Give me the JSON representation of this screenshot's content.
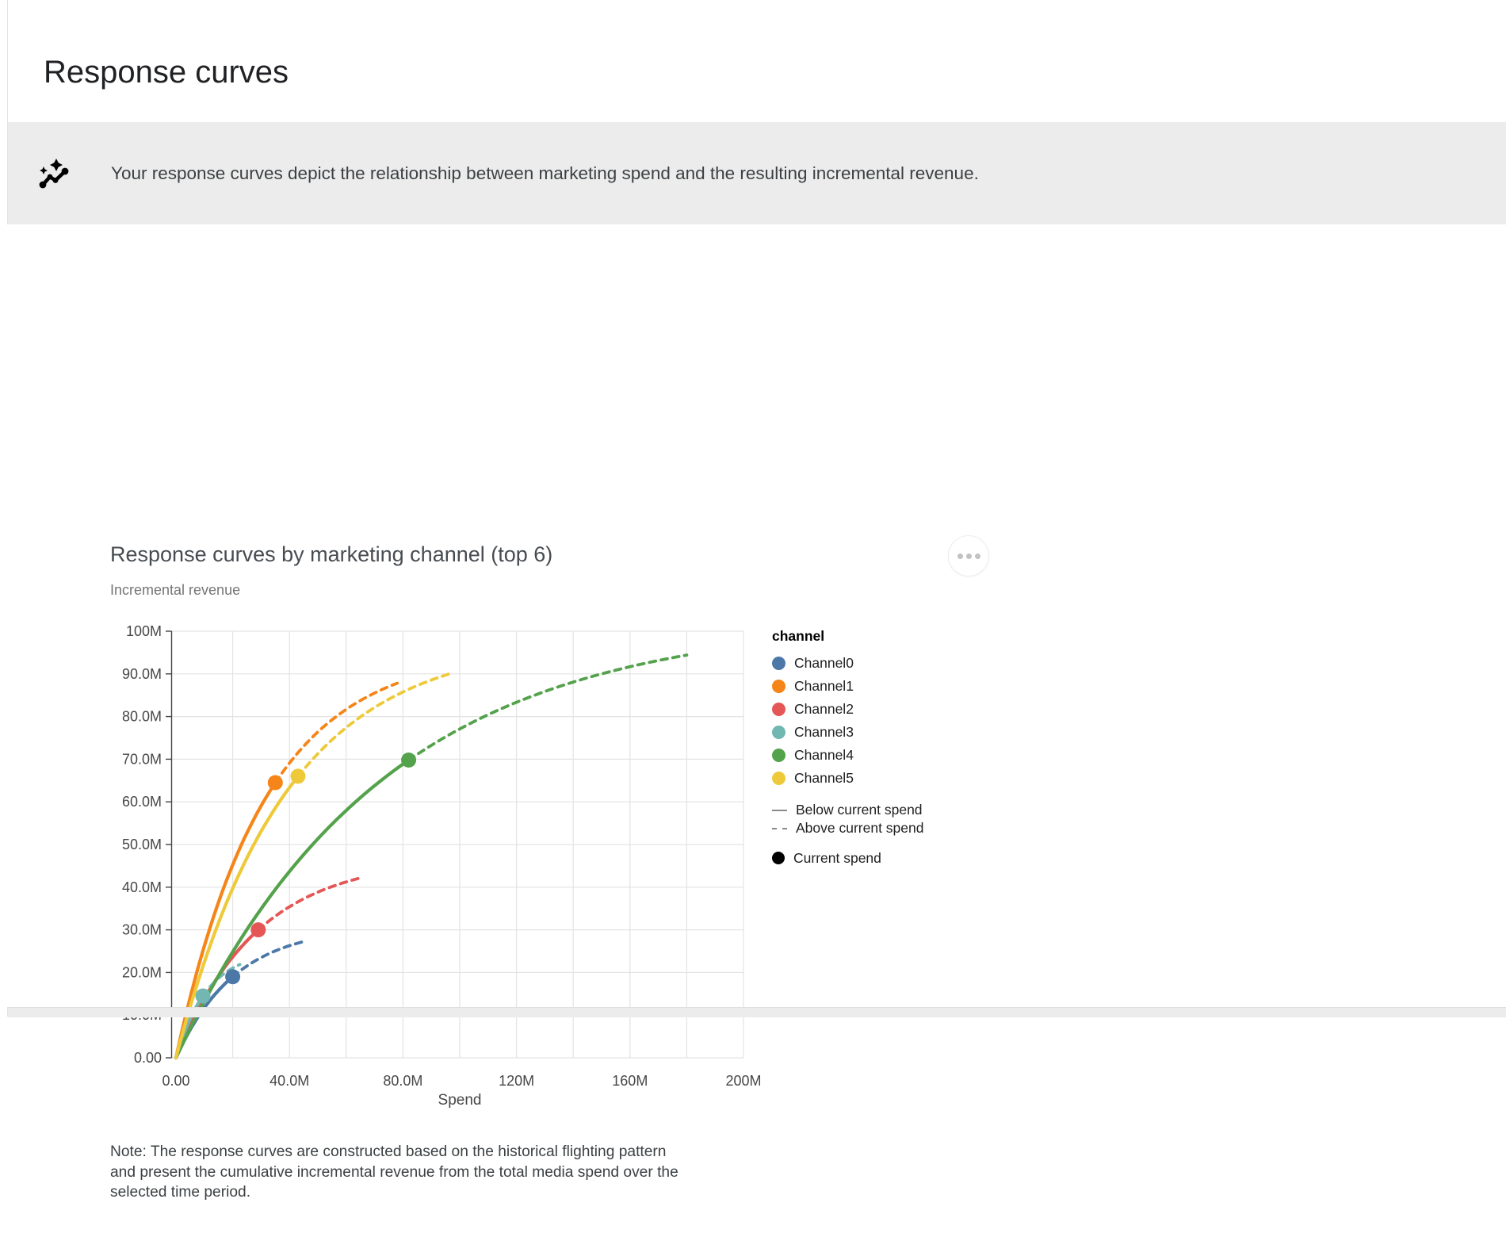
{
  "page": {
    "title": "Response curves"
  },
  "banner": {
    "icon": "insights-sparkle-icon",
    "text": "Your response curves depict the relationship between marketing spend and the resulting incremental revenue.",
    "background": "#ececec"
  },
  "chart": {
    "title": "Response curves by marketing channel (top 6)",
    "subtitle": "Incremental revenue",
    "menu_icon": "more-options"
  },
  "chart_data": {
    "type": "line",
    "title": "Response curves by marketing channel (top 6)",
    "xlabel": "Spend",
    "ylabel": "Incremental revenue",
    "x_unit": "M",
    "y_unit": "M",
    "xlim": [
      0,
      200
    ],
    "ylim": [
      0,
      100
    ],
    "grid": true,
    "legend_position": "right",
    "legend_title": "channel",
    "x_grid_step": 20,
    "y_grid_step": 10,
    "x_ticks": [
      {
        "v": 0,
        "label": "0.00"
      },
      {
        "v": 40,
        "label": "40.0M"
      },
      {
        "v": 80,
        "label": "80.0M"
      },
      {
        "v": 120,
        "label": "120M"
      },
      {
        "v": 160,
        "label": "160M"
      },
      {
        "v": 200,
        "label": "200M"
      }
    ],
    "y_ticks": [
      {
        "v": 0,
        "label": "0.00"
      },
      {
        "v": 10,
        "label": "10.0M"
      },
      {
        "v": 20,
        "label": "20.0M"
      },
      {
        "v": 30,
        "label": "30.0M"
      },
      {
        "v": 40,
        "label": "40.0M"
      },
      {
        "v": 50,
        "label": "50.0M"
      },
      {
        "v": 60,
        "label": "60.0M"
      },
      {
        "v": 70,
        "label": "70.0M"
      },
      {
        "v": 80,
        "label": "80.0M"
      },
      {
        "v": 90,
        "label": "90.0M"
      },
      {
        "v": 100,
        "label": "100M"
      }
    ],
    "series": [
      {
        "name": "Channel0",
        "color": "#4c78a8",
        "current_spend": {
          "spend_m": 20,
          "revenue_m": 19
        },
        "curve_end": {
          "spend_m": 45,
          "revenue_m": 27.5
        },
        "model": {
          "type": "saturating_exp",
          "a": 30.8,
          "k": 0.048
        }
      },
      {
        "name": "Channel1",
        "color": "#f58518",
        "current_spend": {
          "spend_m": 35,
          "revenue_m": 64.5
        },
        "curve_end": {
          "spend_m": 78,
          "revenue_m": 88
        },
        "model": {
          "type": "saturating_exp",
          "a": 95.7,
          "k": 0.032
        }
      },
      {
        "name": "Channel2",
        "color": "#e45756",
        "current_spend": {
          "spend_m": 29,
          "revenue_m": 30
        },
        "curve_end": {
          "spend_m": 65,
          "revenue_m": 42
        },
        "model": {
          "type": "saturating_exp",
          "a": 47.0,
          "k": 0.035
        }
      },
      {
        "name": "Channel3",
        "color": "#72b7b2",
        "current_spend": {
          "spend_m": 9.5,
          "revenue_m": 14.5
        },
        "curve_end": {
          "spend_m": 22.5,
          "revenue_m": 21.8
        },
        "model": {
          "type": "saturating_exp",
          "a": 25.2,
          "k": 0.09
        }
      },
      {
        "name": "Channel4",
        "color": "#54a24b",
        "current_spend": {
          "spend_m": 82,
          "revenue_m": 69.8
        },
        "curve_end": {
          "spend_m": 180,
          "revenue_m": 94.5
        },
        "model": {
          "type": "saturating_exp",
          "a": 103.0,
          "k": 0.0138
        }
      },
      {
        "name": "Channel5",
        "color": "#eeca3b",
        "current_spend": {
          "spend_m": 43,
          "revenue_m": 66
        },
        "curve_end": {
          "spend_m": 97,
          "revenue_m": 90
        },
        "model": {
          "type": "saturating_exp",
          "a": 98.0,
          "k": 0.026
        }
      }
    ],
    "style_legend": [
      {
        "label": "Below current spend",
        "style": "solid"
      },
      {
        "label": "Above current spend",
        "style": "dashed"
      },
      {
        "label": "Current spend",
        "style": "dot"
      }
    ]
  },
  "note": {
    "lines": [
      "Note: The response curves are constructed based on the historical flighting pattern",
      "and present the cumulative incremental revenue from the total media spend over the",
      "selected time period."
    ]
  }
}
